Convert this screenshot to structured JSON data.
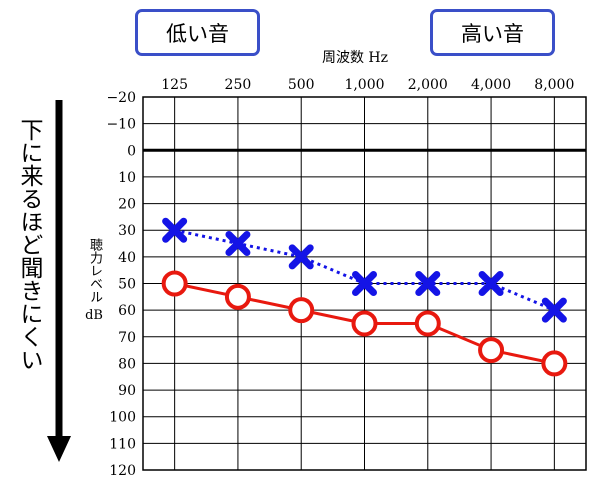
{
  "badges": {
    "low": "低い音",
    "high": "高い音"
  },
  "side_label": "下に来るほど聞きにくい",
  "chart_data": {
    "type": "line",
    "title": "",
    "xlabel": "周波数 Hz",
    "ylabel_top": "聴力レベル",
    "ylabel_unit": "dB",
    "categories": [
      "125",
      "250",
      "500",
      "1,000",
      "2,000",
      "4,000",
      "8,000"
    ],
    "ylim": [
      -20,
      120
    ],
    "y_inverted": true,
    "yticks": [
      "−20",
      "−10",
      "0",
      "10",
      "20",
      "30",
      "40",
      "50",
      "60",
      "70",
      "80",
      "90",
      "100",
      "110",
      "120"
    ],
    "yticks_values": [
      -20,
      -10,
      0,
      10,
      20,
      30,
      40,
      50,
      60,
      70,
      80,
      90,
      100,
      110,
      120
    ],
    "grid": true,
    "series": [
      {
        "values": [
          30,
          35,
          40,
          50,
          50,
          50,
          60
        ],
        "color": "#1414e6",
        "marker": "x",
        "line": "dotted"
      },
      {
        "values": [
          50,
          55,
          60,
          65,
          65,
          75,
          80
        ],
        "color": "#e8190f",
        "marker": "o",
        "line": "solid"
      }
    ],
    "colors": {
      "arrow": "#000000",
      "badge_border": "#3a4fc8"
    }
  }
}
